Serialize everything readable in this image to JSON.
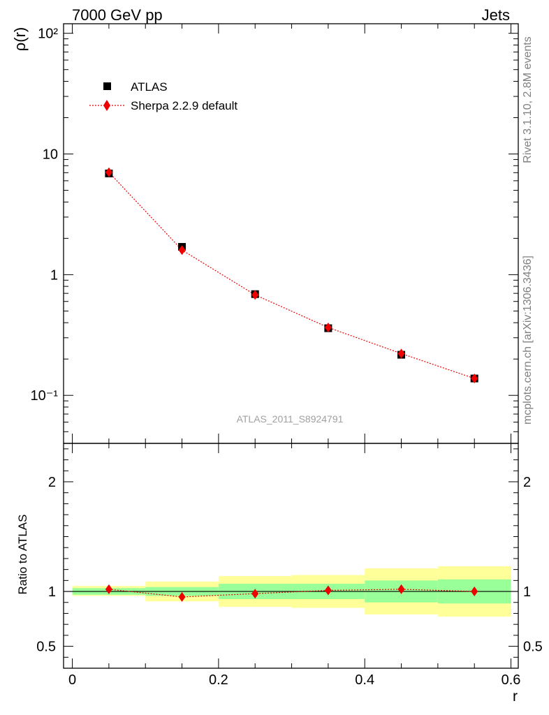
{
  "header": {
    "left": "7000 GeV pp",
    "right": "Jets"
  },
  "side_labels": {
    "rivet": "Rivet 3.1.10,  2.8M events",
    "mcplots": "mcplots.cern.ch [arXiv:1306.3436]"
  },
  "watermark": "ATLAS_2011_S8924791",
  "chart_data": [
    {
      "type": "scatter",
      "panel": "main",
      "ylabel": "ρ(r)",
      "yscale": "log",
      "ylim": [
        0.04,
        120
      ],
      "xlim": [
        -0.012,
        0.61
      ],
      "ytick_labels": [
        "10⁻¹",
        "1",
        "10",
        "10²"
      ],
      "legend": {
        "placement": "top-left",
        "entries": [
          "ATLAS",
          "Sherpa 2.2.9 default"
        ]
      },
      "series": [
        {
          "name": "ATLAS",
          "color": "#000000",
          "marker": "square",
          "x": [
            0.05,
            0.15,
            0.25,
            0.35,
            0.45,
            0.55
          ],
          "y": [
            6.9,
            1.7,
            0.69,
            0.36,
            0.217,
            0.138
          ]
        },
        {
          "name": "Sherpa 2.2.9 default",
          "color": "#ee0000",
          "marker": "diamond",
          "line": "dotted",
          "x": [
            0.05,
            0.15,
            0.25,
            0.35,
            0.45,
            0.55
          ],
          "y": [
            7.05,
            1.6,
            0.68,
            0.365,
            0.222,
            0.138
          ]
        }
      ]
    },
    {
      "type": "line",
      "panel": "ratio",
      "ylabel": "Ratio to ATLAS",
      "xlabel": "r",
      "ylim": [
        0.3,
        2.35
      ],
      "xlim": [
        -0.012,
        0.61
      ],
      "yticks": [
        0.5,
        1,
        2
      ],
      "ytick_labels": [
        "0.5",
        "1",
        "2"
      ],
      "xticks": [
        0,
        0.2,
        0.4,
        0.6
      ],
      "xtick_labels": [
        "0",
        "0.2",
        "0.4",
        "0.6"
      ],
      "bands": [
        {
          "x0": 0.0,
          "x1": 0.1,
          "yellow": [
            0.96,
            1.05
          ],
          "green": [
            0.97,
            1.03
          ]
        },
        {
          "x0": 0.1,
          "x1": 0.2,
          "yellow": [
            0.91,
            1.09
          ],
          "green": [
            0.96,
            1.04
          ]
        },
        {
          "x0": 0.2,
          "x1": 0.3,
          "yellow": [
            0.86,
            1.14
          ],
          "green": [
            0.93,
            1.07
          ]
        },
        {
          "x0": 0.3,
          "x1": 0.4,
          "yellow": [
            0.85,
            1.15
          ],
          "green": [
            0.93,
            1.07
          ]
        },
        {
          "x0": 0.4,
          "x1": 0.5,
          "yellow": [
            0.79,
            1.21
          ],
          "green": [
            0.9,
            1.1
          ]
        },
        {
          "x0": 0.5,
          "x1": 0.6,
          "yellow": [
            0.77,
            1.23
          ],
          "green": [
            0.89,
            1.11
          ]
        }
      ],
      "band_colors": {
        "yellow": "#ffff99",
        "green": "#99ff99"
      },
      "series": [
        {
          "name": "Sherpa 2.2.9 default",
          "color": "#ee0000",
          "marker": "diamond",
          "line": "dotted",
          "x": [
            0.05,
            0.15,
            0.25,
            0.35,
            0.45,
            0.55
          ],
          "y": [
            1.02,
            0.95,
            0.98,
            1.01,
            1.02,
            1.0
          ]
        }
      ]
    }
  ]
}
